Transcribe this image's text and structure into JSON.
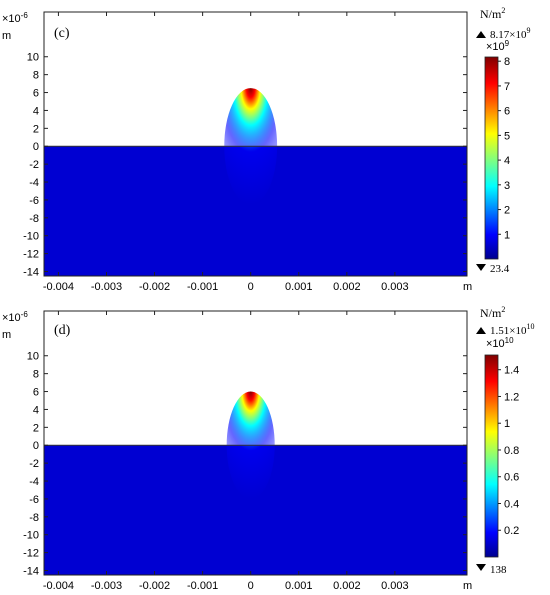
{
  "chart_data": [
    {
      "type": "heatmap",
      "panel_label": "(c)",
      "y_exponent": "×10",
      "y_exponent_power": "-6",
      "xlabel": "m",
      "ylabel": "m",
      "xlim": [
        -0.0043,
        0.0045
      ],
      "ylim": [
        -14.5,
        15
      ],
      "x_ticks": [
        "-0.004",
        "-0.003",
        "-0.002",
        "-0.001",
        "0",
        "0.001",
        "0.002",
        "0.003"
      ],
      "x_tick_values": [
        -0.004,
        -0.003,
        -0.002,
        -0.001,
        0,
        0.001,
        0.002,
        0.003
      ],
      "y_ticks": [
        "10",
        "8",
        "6",
        "4",
        "2",
        "0",
        "-2",
        "-4",
        "-6",
        "-8",
        "-10",
        "-12",
        "-14"
      ],
      "y_tick_values": [
        10,
        8,
        6,
        4,
        2,
        0,
        -2,
        -4,
        -6,
        -8,
        -10,
        -12,
        -14
      ],
      "field": {
        "x_center": 0,
        "y_top": 0,
        "y_bottom": -14.5,
        "radius_x": 0.00055,
        "radius_y": 6.5
      },
      "colorbar": {
        "unit": "N/m",
        "unit_power": "2",
        "max_label": "8.17×10",
        "max_power": "9",
        "scale_label": "×10",
        "scale_power": "9",
        "ticks": [
          "8",
          "7",
          "6",
          "5",
          "4",
          "3",
          "2",
          "1"
        ],
        "tick_values": [
          8,
          7,
          6,
          5,
          4,
          3,
          2,
          1
        ],
        "range": [
          0,
          8.17
        ],
        "min_label": "23.4"
      }
    },
    {
      "type": "heatmap",
      "panel_label": "(d)",
      "y_exponent": "×10",
      "y_exponent_power": "-6",
      "xlabel": "m",
      "ylabel": "m",
      "xlim": [
        -0.0043,
        0.0045
      ],
      "ylim": [
        -14.5,
        15
      ],
      "x_ticks": [
        "-0.004",
        "-0.003",
        "-0.002",
        "-0.001",
        "0",
        "0.001",
        "0.002",
        "0.003"
      ],
      "x_tick_values": [
        -0.004,
        -0.003,
        -0.002,
        -0.001,
        0,
        0.001,
        0.002,
        0.003
      ],
      "y_ticks": [
        "10",
        "8",
        "6",
        "4",
        "2",
        "0",
        "-2",
        "-4",
        "-6",
        "-8",
        "-10",
        "-12",
        "-14"
      ],
      "y_tick_values": [
        10,
        8,
        6,
        4,
        2,
        0,
        -2,
        -4,
        -6,
        -8,
        -10,
        -12,
        -14
      ],
      "field": {
        "x_center": 0,
        "y_top": 0,
        "y_bottom": -14.5,
        "radius_x": 0.0005,
        "radius_y": 6
      },
      "colorbar": {
        "unit": "N/m",
        "unit_power": "2",
        "max_label": "1.51×10",
        "max_power": "10",
        "scale_label": "×10",
        "scale_power": "10",
        "ticks": [
          "1.4",
          "1.2",
          "1",
          "0.8",
          "0.6",
          "0.4",
          "0.2"
        ],
        "tick_values": [
          1.4,
          1.2,
          1.0,
          0.8,
          0.6,
          0.4,
          0.2
        ],
        "range": [
          0,
          1.51
        ],
        "min_label": "138"
      }
    }
  ]
}
